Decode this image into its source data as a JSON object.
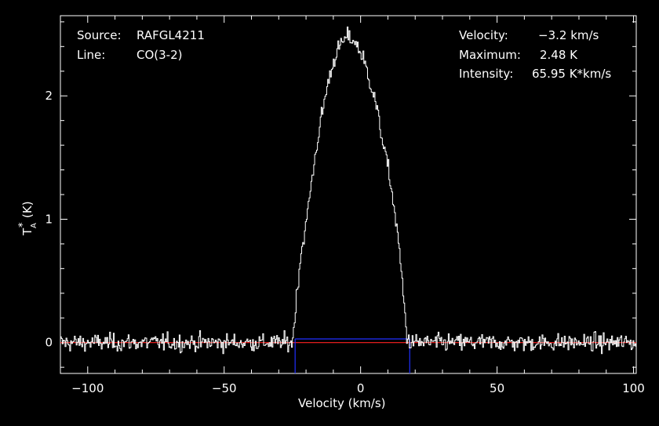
{
  "chart_data": {
    "type": "line",
    "xlabel": "Velocity (km/s)",
    "ylabel": "T",
    "ylabel_sub": "A",
    "ylabel_sup": "*",
    "ylabel_unit": "(K)",
    "xlim": [
      -110,
      101
    ],
    "ylim": [
      -0.25,
      2.65
    ],
    "xticks": [
      -100,
      -50,
      0,
      50,
      100
    ],
    "yticks": [
      0,
      1,
      2
    ],
    "grid": false,
    "info": {
      "source_label": "Source:",
      "source_value": "RAFGL4211",
      "line_label": "Line:",
      "line_value": "CO(3-2)",
      "velocity_label": "Velocity:",
      "velocity_value": "−3.2 km/s",
      "maximum_label": "Maximum:",
      "maximum_value": "2.48 K",
      "intensity_label": "Intensity:",
      "intensity_value": "65.95 K*km/s"
    },
    "spectrum": {
      "color": "#ffffff",
      "channel_width": 0.34,
      "noise_rms": 0.035,
      "profile_x": [
        -110,
        -25,
        -24.5,
        -24,
        -22,
        -20,
        -18,
        -15,
        -12,
        -9,
        -6,
        -5,
        -3,
        -1,
        1,
        3,
        5,
        8,
        11,
        14,
        16,
        17,
        18,
        101
      ],
      "profile_y": [
        0,
        0,
        0.1,
        0.25,
        0.7,
        0.95,
        1.3,
        1.75,
        2.1,
        2.35,
        2.45,
        2.48,
        2.46,
        2.4,
        2.3,
        2.15,
        2.0,
        1.65,
        1.3,
        0.8,
        0.3,
        0.05,
        0,
        0
      ]
    },
    "baseline": {
      "color": "#ff2020",
      "y": 0.0
    },
    "integration_window": {
      "color": "#2030ff",
      "x": [
        -24,
        18
      ],
      "y": 0.03
    }
  }
}
